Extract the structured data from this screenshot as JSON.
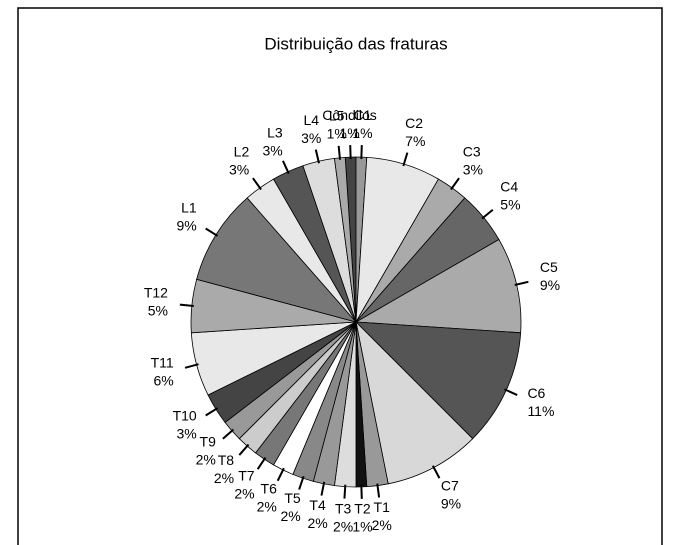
{
  "chart_data": {
    "type": "pie",
    "title": "Distribuição das fraturas",
    "categories": [
      "Côndilos",
      "C1",
      "C2",
      "C3",
      "C4",
      "C5",
      "C6",
      "C7",
      "T1",
      "T2",
      "T3",
      "T4",
      "T5",
      "T6",
      "T7",
      "T8",
      "T9",
      "T10",
      "T11",
      "T12",
      "L1",
      "L2",
      "L3",
      "L4",
      "L5"
    ],
    "values": [
      1,
      1,
      7,
      3,
      5,
      9,
      11,
      9,
      2,
      1,
      2,
      2,
      2,
      2,
      2,
      2,
      2,
      3,
      6,
      5,
      9,
      3,
      3,
      3,
      1
    ],
    "value_labels": [
      "1%",
      "1%",
      "7%",
      "3%",
      "5%",
      "9%",
      "11%",
      "9%",
      "2%",
      "1%",
      "2%",
      "2%",
      "2%",
      "2%",
      "2%",
      "2%",
      "2%",
      "3%",
      "6%",
      "5%",
      "9%",
      "3%",
      "3%",
      "3%",
      "1%"
    ],
    "colors": [
      "#444444",
      "#999999",
      "#e8e8e8",
      "#aaaaaa",
      "#666666",
      "#aaaaaa",
      "#555555",
      "#d8d8d8",
      "#999999",
      "#111111",
      "#dddddd",
      "#999999",
      "#888888",
      "#ffffff",
      "#777777",
      "#cccccc",
      "#999999",
      "#444444",
      "#e8e8e8",
      "#aaaaaa",
      "#777777",
      "#e8e8e8",
      "#555555",
      "#dddddd",
      "#aaaaaa"
    ]
  }
}
